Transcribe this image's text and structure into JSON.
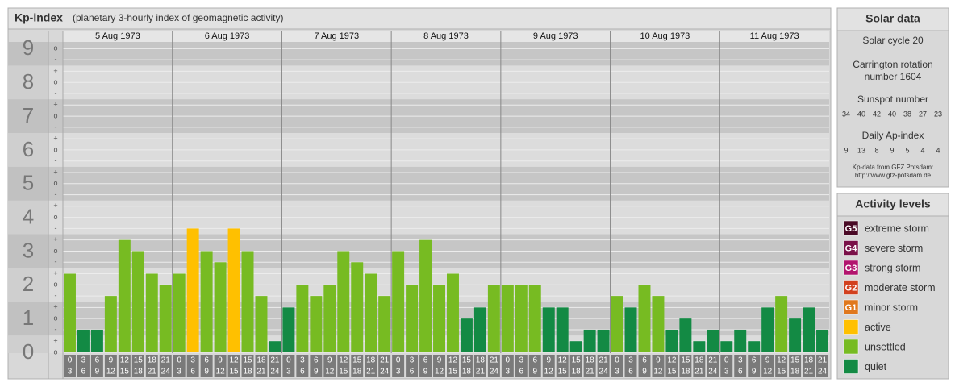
{
  "chart_data": {
    "type": "bar",
    "title": "Kp-index",
    "subtitle": "(planetary 3-hourly index of geomagnetic activity)",
    "days": [
      "5 Aug 1973",
      "6 Aug 1973",
      "7 Aug 1973",
      "8 Aug 1973",
      "9 Aug 1973",
      "10 Aug 1973",
      "11 Aug 1973"
    ],
    "hour_bins": [
      [
        0,
        3
      ],
      [
        3,
        6
      ],
      [
        6,
        9
      ],
      [
        9,
        12
      ],
      [
        12,
        15
      ],
      [
        15,
        18
      ],
      [
        18,
        21
      ],
      [
        21,
        24
      ]
    ],
    "values": [
      2.33,
      0.67,
      0.67,
      1.67,
      3.33,
      3,
      2.33,
      2,
      2.33,
      3.67,
      3,
      2.67,
      3.67,
      3,
      1.67,
      0.33,
      1.33,
      2,
      1.67,
      2,
      3,
      2.67,
      2.33,
      1.67,
      3,
      2,
      3.33,
      2,
      2.33,
      1,
      1.33,
      2,
      2,
      2,
      2,
      1.33,
      1.33,
      0.33,
      0.67,
      0.67,
      1.67,
      1.33,
      2,
      1.67,
      0.67,
      1,
      0.33,
      0.67,
      0.33,
      0.67,
      0.33,
      1.33,
      1.67,
      1,
      1.33,
      0.67
    ],
    "colors": [
      "#77bb22",
      "#138a44",
      "#138a44",
      "#77bb22",
      "#77bb22",
      "#77bb22",
      "#77bb22",
      "#77bb22",
      "#77bb22",
      "#ffc000",
      "#77bb22",
      "#77bb22",
      "#ffc000",
      "#77bb22",
      "#77bb22",
      "#138a44",
      "#138a44",
      "#77bb22",
      "#77bb22",
      "#77bb22",
      "#77bb22",
      "#77bb22",
      "#77bb22",
      "#77bb22",
      "#77bb22",
      "#77bb22",
      "#77bb22",
      "#77bb22",
      "#77bb22",
      "#138a44",
      "#138a44",
      "#77bb22",
      "#77bb22",
      "#77bb22",
      "#77bb22",
      "#138a44",
      "#138a44",
      "#138a44",
      "#138a44",
      "#138a44",
      "#77bb22",
      "#138a44",
      "#77bb22",
      "#77bb22",
      "#138a44",
      "#138a44",
      "#138a44",
      "#138a44",
      "#138a44",
      "#138a44",
      "#138a44",
      "#138a44",
      "#77bb22",
      "#138a44",
      "#138a44",
      "#138a44"
    ],
    "ylim": [
      0,
      9.2
    ],
    "yticks": [
      0,
      1,
      2,
      3,
      4,
      5,
      6,
      7,
      8,
      9
    ],
    "minor_yticks": [
      {
        "value": 0,
        "label": "o"
      },
      {
        "value": 0.33,
        "label": "+"
      },
      {
        "value": 0.67,
        "label": "-"
      },
      {
        "value": 1,
        "label": "o"
      },
      {
        "value": 1.33,
        "label": "+"
      },
      {
        "value": 1.67,
        "label": "-"
      },
      {
        "value": 2,
        "label": "o"
      },
      {
        "value": 2.33,
        "label": "+"
      },
      {
        "value": 2.67,
        "label": "-"
      },
      {
        "value": 3,
        "label": "o"
      },
      {
        "value": 3.33,
        "label": "+"
      },
      {
        "value": 3.67,
        "label": "-"
      },
      {
        "value": 4,
        "label": "o"
      },
      {
        "value": 4.33,
        "label": "+"
      },
      {
        "value": 4.67,
        "label": "-"
      },
      {
        "value": 5,
        "label": "o"
      },
      {
        "value": 5.33,
        "label": "+"
      },
      {
        "value": 5.67,
        "label": "-"
      },
      {
        "value": 6,
        "label": "o"
      },
      {
        "value": 6.33,
        "label": "+"
      },
      {
        "value": 6.67,
        "label": "-"
      },
      {
        "value": 7,
        "label": "o"
      },
      {
        "value": 7.33,
        "label": "+"
      },
      {
        "value": 7.67,
        "label": "-"
      },
      {
        "value": 8,
        "label": "o"
      },
      {
        "value": 8.33,
        "label": "+"
      },
      {
        "value": 8.67,
        "label": "-"
      },
      {
        "value": 9,
        "label": "o"
      }
    ],
    "grid": true
  },
  "solar_data": {
    "title": "Solar data",
    "solar_cycle": "Solar cycle 20",
    "carrington": [
      "Carrington rotation",
      "number 1604"
    ],
    "sunspot_label": "Sunspot number",
    "sunspot": [
      34,
      40,
      42,
      40,
      38,
      27,
      23
    ],
    "ap_label": "Daily Ap-index",
    "ap": [
      9,
      13,
      8,
      9,
      5,
      4,
      4
    ],
    "source": [
      "Kp-data from GFZ Potsdam:",
      "http://www.gfz-potsdam.de"
    ]
  },
  "activity_levels": {
    "title": "Activity levels",
    "items": [
      {
        "badge": "G5",
        "name": "extreme storm",
        "color": "#4a0a26"
      },
      {
        "badge": "G4",
        "name": "severe storm",
        "color": "#7a1048"
      },
      {
        "badge": "G3",
        "name": "strong storm",
        "color": "#b2146e"
      },
      {
        "badge": "G2",
        "name": "moderate storm",
        "color": "#d2401e"
      },
      {
        "badge": "G1",
        "name": "minor storm",
        "color": "#e0781c"
      },
      {
        "badge": null,
        "name": "active",
        "color": "#ffc000"
      },
      {
        "badge": null,
        "name": "unsettled",
        "color": "#77bb22"
      },
      {
        "badge": null,
        "name": "quiet",
        "color": "#138a44"
      }
    ]
  }
}
